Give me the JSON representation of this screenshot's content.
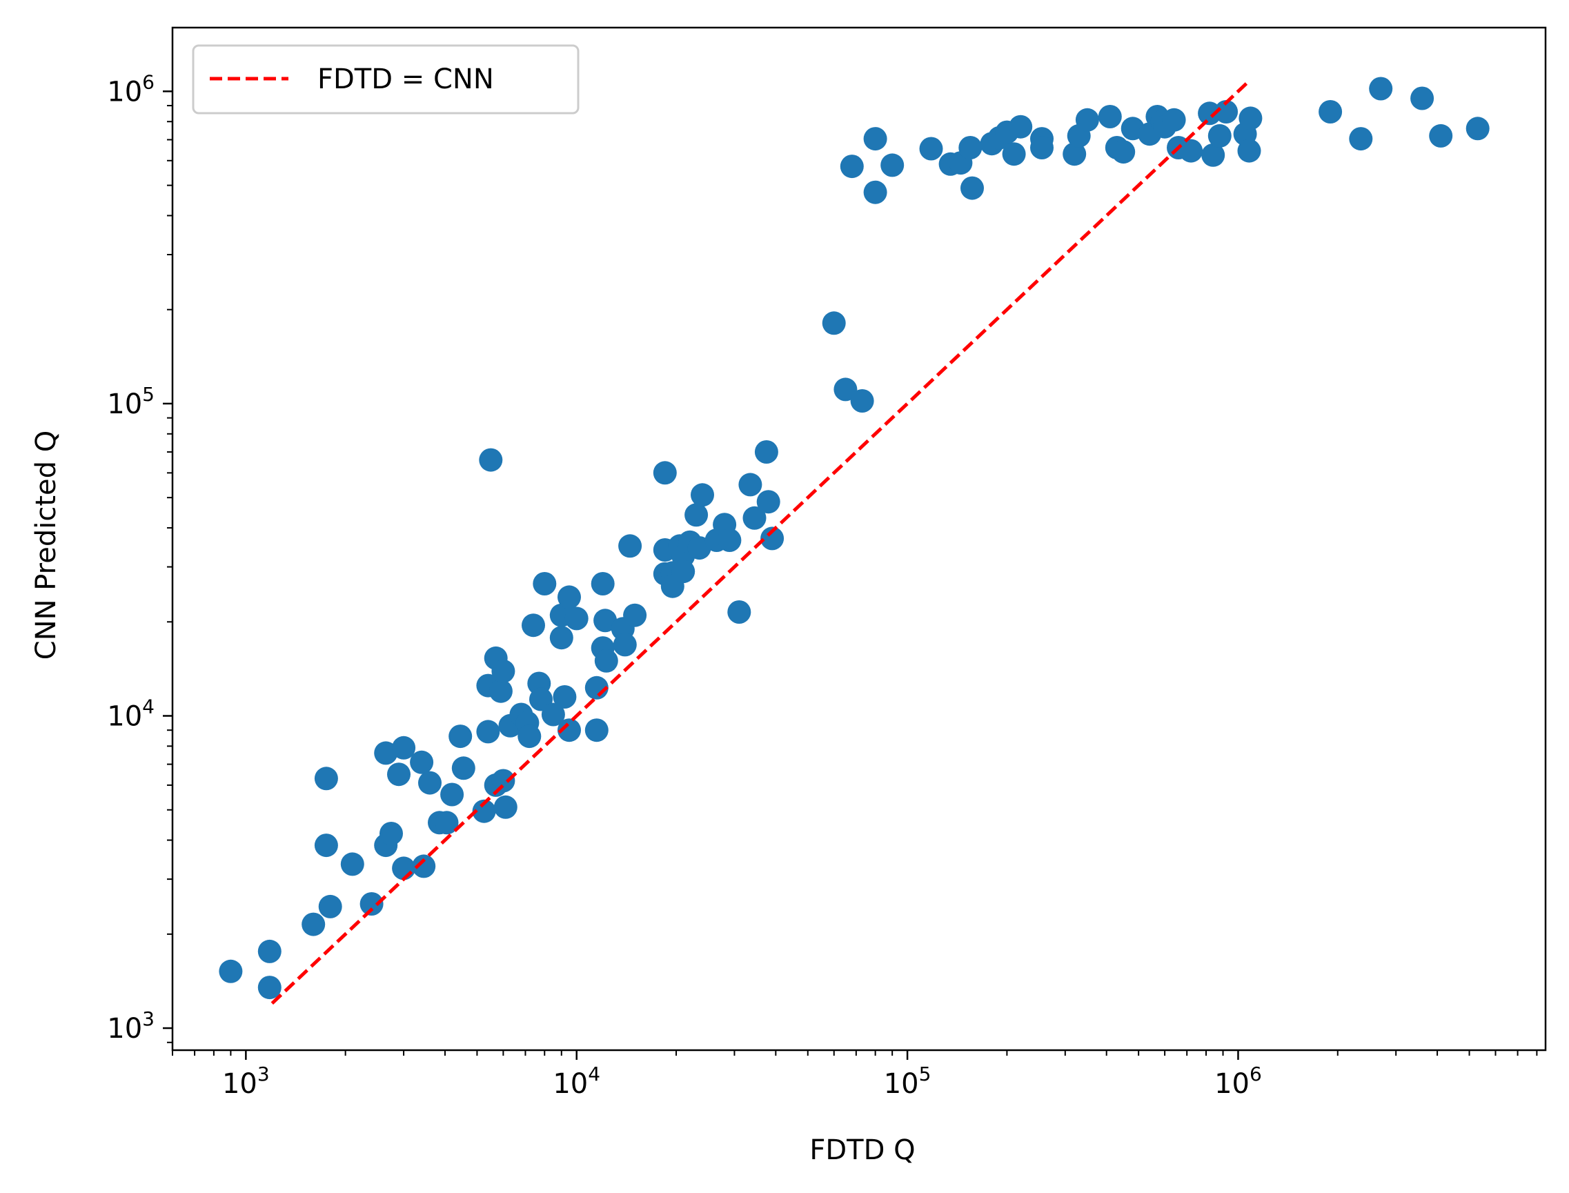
{
  "chart_data": {
    "type": "scatter",
    "xlabel": "FDTD Q",
    "ylabel": "CNN Predicted Q",
    "xscale": "log",
    "yscale": "log",
    "xlim": [
      600,
      8500000
    ],
    "ylim": [
      850,
      1600000
    ],
    "xticks": [
      {
        "value": 1000,
        "base": "10",
        "exp": "3"
      },
      {
        "value": 10000,
        "base": "10",
        "exp": "4"
      },
      {
        "value": 100000,
        "base": "10",
        "exp": "5"
      },
      {
        "value": 1000000,
        "base": "10",
        "exp": "6"
      }
    ],
    "yticks": [
      {
        "value": 1000,
        "base": "10",
        "exp": "3"
      },
      {
        "value": 10000,
        "base": "10",
        "exp": "4"
      },
      {
        "value": 100000,
        "base": "10",
        "exp": "5"
      },
      {
        "value": 1000000,
        "base": "10",
        "exp": "6"
      }
    ],
    "grid": false,
    "legend_position": "top-left",
    "colors": {
      "points": "#1f77b4",
      "reference_line": "#ff0000",
      "axes": "#000000"
    },
    "reference_line": {
      "name": "FDTD = CNN",
      "style": "dashed",
      "x": [
        1200,
        1060000
      ],
      "y": [
        1200,
        1060000
      ]
    },
    "series": [
      {
        "points": [
          [
            900,
            1520
          ],
          [
            1180,
            1760
          ],
          [
            1180,
            1350
          ],
          [
            1600,
            2150
          ],
          [
            1750,
            6300
          ],
          [
            1750,
            3850
          ],
          [
            1800,
            2450
          ],
          [
            2100,
            3350
          ],
          [
            2400,
            2500
          ],
          [
            2650,
            7600
          ],
          [
            2650,
            3850
          ],
          [
            2750,
            4200
          ],
          [
            2900,
            6500
          ],
          [
            3000,
            7900
          ],
          [
            3000,
            3250
          ],
          [
            3400,
            7100
          ],
          [
            3450,
            3300
          ],
          [
            3600,
            6100
          ],
          [
            3850,
            4550
          ],
          [
            4050,
            4550
          ],
          [
            4200,
            5600
          ],
          [
            4450,
            8600
          ],
          [
            4550,
            6800
          ],
          [
            5250,
            4950
          ],
          [
            5400,
            8900
          ],
          [
            5400,
            12500
          ],
          [
            5500,
            66000
          ],
          [
            5700,
            15300
          ],
          [
            5700,
            6000
          ],
          [
            5900,
            12000
          ],
          [
            6000,
            13900
          ],
          [
            6000,
            6200
          ],
          [
            6100,
            5100
          ],
          [
            6300,
            9300
          ],
          [
            6800,
            10100
          ],
          [
            7100,
            9500
          ],
          [
            7200,
            8600
          ],
          [
            7400,
            19500
          ],
          [
            7700,
            12700
          ],
          [
            7800,
            11300
          ],
          [
            8000,
            26500
          ],
          [
            8500,
            10100
          ],
          [
            9000,
            21000
          ],
          [
            9000,
            17800
          ],
          [
            9200,
            11500
          ],
          [
            9500,
            24000
          ],
          [
            9500,
            9000
          ],
          [
            10000,
            20500
          ],
          [
            11500,
            12300
          ],
          [
            11500,
            9000
          ],
          [
            12000,
            26500
          ],
          [
            12000,
            16500
          ],
          [
            12200,
            20200
          ],
          [
            12300,
            15000
          ],
          [
            13800,
            19000
          ],
          [
            14000,
            16900
          ],
          [
            14500,
            35000
          ],
          [
            15000,
            21000
          ],
          [
            18500,
            60000
          ],
          [
            18500,
            34000
          ],
          [
            18500,
            28500
          ],
          [
            19500,
            28700
          ],
          [
            19500,
            26000
          ],
          [
            20500,
            35000
          ],
          [
            21000,
            32500
          ],
          [
            21000,
            29000
          ],
          [
            22000,
            36000
          ],
          [
            23000,
            44000
          ],
          [
            23500,
            34500
          ],
          [
            24000,
            51000
          ],
          [
            26500,
            36500
          ],
          [
            28000,
            41000
          ],
          [
            29000,
            36500
          ],
          [
            31000,
            21500
          ],
          [
            33500,
            55000
          ],
          [
            34500,
            43000
          ],
          [
            37500,
            70000
          ],
          [
            38000,
            48500
          ],
          [
            39000,
            37000
          ],
          [
            60000,
            181000
          ],
          [
            65000,
            111000
          ],
          [
            73000,
            102000
          ],
          [
            68000,
            575000
          ],
          [
            80000,
            705000
          ],
          [
            80000,
            475000
          ],
          [
            90000,
            580000
          ],
          [
            118000,
            655000
          ],
          [
            135000,
            585000
          ],
          [
            145000,
            590000
          ],
          [
            155000,
            660000
          ],
          [
            157000,
            490000
          ],
          [
            180000,
            680000
          ],
          [
            190000,
            710000
          ],
          [
            200000,
            740000
          ],
          [
            210000,
            630000
          ],
          [
            220000,
            770000
          ],
          [
            255000,
            705000
          ],
          [
            255000,
            660000
          ],
          [
            320000,
            630000
          ],
          [
            330000,
            720000
          ],
          [
            350000,
            810000
          ],
          [
            410000,
            830000
          ],
          [
            430000,
            660000
          ],
          [
            450000,
            640000
          ],
          [
            480000,
            760000
          ],
          [
            540000,
            730000
          ],
          [
            570000,
            830000
          ],
          [
            590000,
            800000
          ],
          [
            600000,
            770000
          ],
          [
            640000,
            810000
          ],
          [
            660000,
            660000
          ],
          [
            720000,
            645000
          ],
          [
            820000,
            850000
          ],
          [
            840000,
            625000
          ],
          [
            880000,
            720000
          ],
          [
            920000,
            860000
          ],
          [
            1050000,
            730000
          ],
          [
            1080000,
            645000
          ],
          [
            1090000,
            820000
          ],
          [
            1900000,
            860000
          ],
          [
            2350000,
            705000
          ],
          [
            2700000,
            1020000
          ],
          [
            3600000,
            950000
          ],
          [
            4100000,
            720000
          ],
          [
            5300000,
            760000
          ]
        ]
      }
    ]
  }
}
